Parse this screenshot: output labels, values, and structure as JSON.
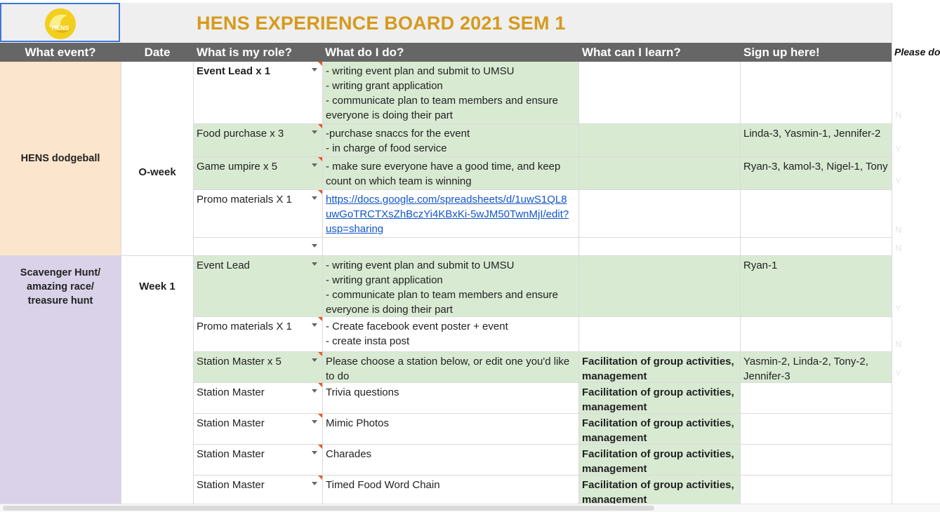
{
  "title": "HENS EXPERIENCE BOARD 2021 SEM 1",
  "logo_text": "HENS",
  "headers": {
    "event": "What event?",
    "date": "Date",
    "role": "What is my role?",
    "do": "What do I do?",
    "learn": "What can I learn?",
    "signup": "Sign up here!",
    "please": "Please do"
  },
  "events": {
    "e1": {
      "name": "HENS dodgeball",
      "date": "O-week"
    },
    "e2": {
      "name": "Scavenger Hunt/\namazing race/\ntreasure hunt",
      "date": "Week 1"
    }
  },
  "rows": [
    {
      "role": "Event Lead x 1",
      "do": "- writing event plan and submit to UMSU\n- writing grant application\n- communicate plan to team members and ensure everyone is doing their part",
      "learn": "",
      "signup": ""
    },
    {
      "role": "Food purchase x 3",
      "do": "-purchase snaccs for the event\n- in charge of food service",
      "learn": "",
      "signup": "Linda-3, Yasmin-1, Jennifer-2"
    },
    {
      "role": "Game umpire x 5",
      "do": "- make sure everyone have a good time, and keep count on which team is winning",
      "learn": "",
      "signup": "Ryan-3, kamol-3, Nigel-1, Tony"
    },
    {
      "role": "Promo materials X 1",
      "do": "https://docs.google.com/spreadsheets/d/1uwS1QL8uwGoTRCTXsZhBczYi4KBxKi-5wJM50TwnMjI/edit?usp=sharing",
      "learn": "",
      "signup": ""
    },
    {
      "role": "",
      "do": "",
      "learn": "",
      "signup": ""
    },
    {
      "role": "Event Lead",
      "do": "- writing event plan and submit to UMSU\n- writing grant application\n- communicate plan to team members and ensure everyone is doing their part",
      "learn": "",
      "signup": "Ryan-1"
    },
    {
      "role": "Promo materials X 1",
      "do": "- Create facebook event poster + event\n- create insta post",
      "learn": "",
      "signup": ""
    },
    {
      "role": "Station Master x 5",
      "do": "Please choose a station below, or edit one you'd like to do",
      "learn": "Facilitation of group activities, management",
      "signup": "Yasmin-2, Linda-2, Tony-2, Jennifer-3"
    },
    {
      "role": "Station Master",
      "do": "Trivia questions",
      "learn": "Facilitation of group activities, management",
      "signup": ""
    },
    {
      "role": "Station Master",
      "do": "Mimic Photos",
      "learn": "Facilitation of group activities, management",
      "signup": ""
    },
    {
      "role": "Station Master",
      "do": "Charades",
      "learn": "Facilitation of group activities, management",
      "signup": ""
    },
    {
      "role": "Station Master",
      "do": "Timed Food Word Chain",
      "learn": "Facilitation of group activities, management",
      "signup": ""
    }
  ],
  "ghost_marks": [
    "N",
    "Y",
    "Y",
    "N",
    "N",
    "Y",
    "N",
    "Y"
  ],
  "colors": {
    "title": "#d69a1c",
    "header_bg": "#666666",
    "event1_bg": "#fce5cd",
    "event2_bg": "#d9d2e9",
    "green": "#d9ead3",
    "link": "#1155cc",
    "selection": "#3c78d8"
  }
}
